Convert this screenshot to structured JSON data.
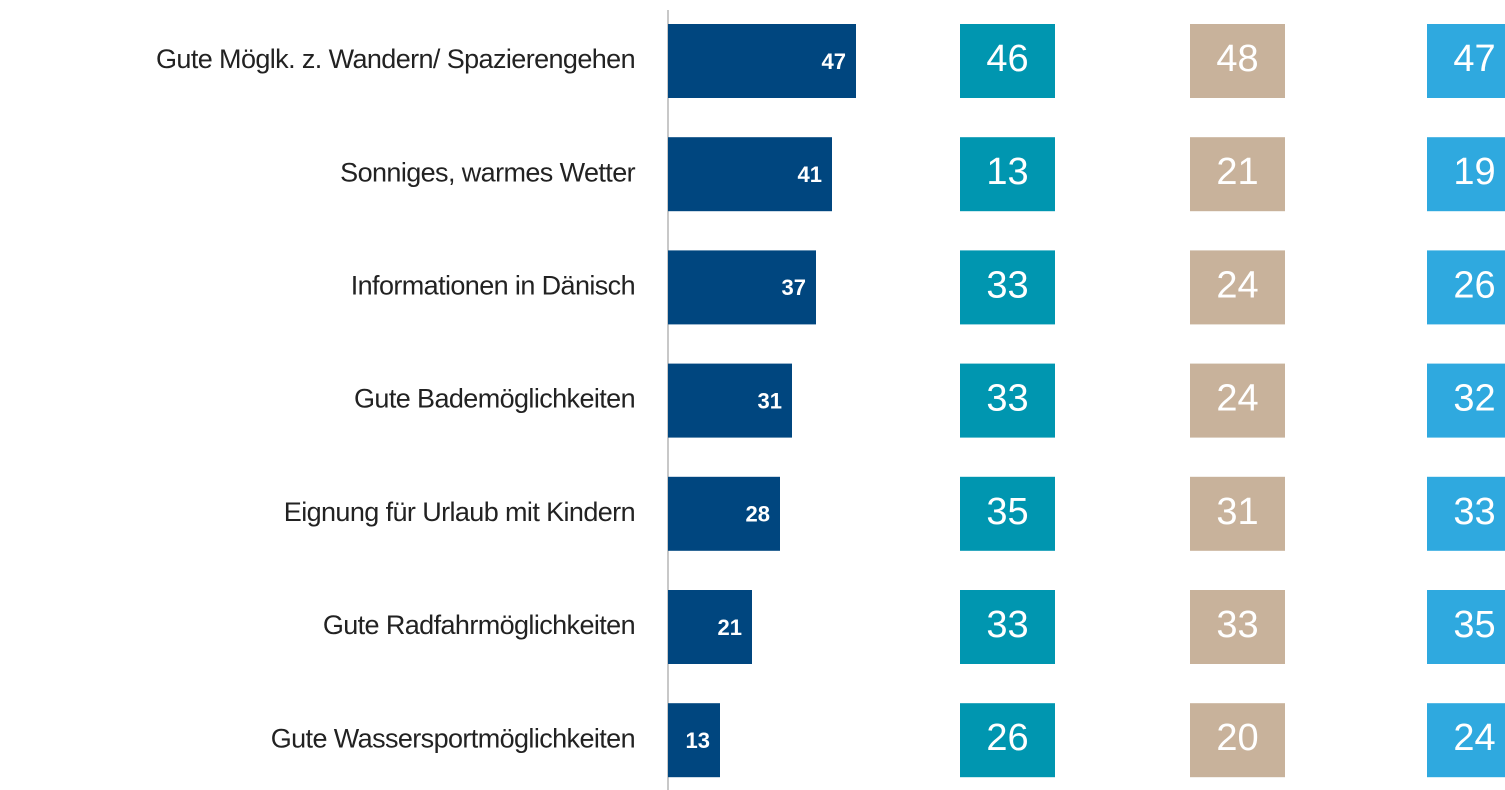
{
  "chart_data": {
    "type": "bar",
    "orientation": "horizontal",
    "categories": [
      "Gute Möglk. z. Wandern/ Spazierengehen",
      "Sonniges, warmes Wetter",
      "Informationen in Dänisch",
      "Gute Bademöglichkeiten",
      "Eignung für Urlaub mit Kindern",
      "Gute Radfahrmöglichkeiten",
      "Gute Wassersportmöglichkeiten"
    ],
    "series": [
      {
        "color": "#00467f",
        "values": [
          47,
          41,
          37,
          31,
          28,
          21,
          13
        ]
      }
    ],
    "columns": [
      {
        "color": "#0096b0",
        "values": [
          46,
          13,
          33,
          33,
          35,
          33,
          26
        ]
      },
      {
        "color": "#c8b29b",
        "values": [
          48,
          21,
          24,
          24,
          31,
          33,
          20
        ]
      },
      {
        "color": "#2fa9df",
        "values": [
          47,
          19,
          26,
          32,
          33,
          35,
          24
        ]
      }
    ]
  }
}
